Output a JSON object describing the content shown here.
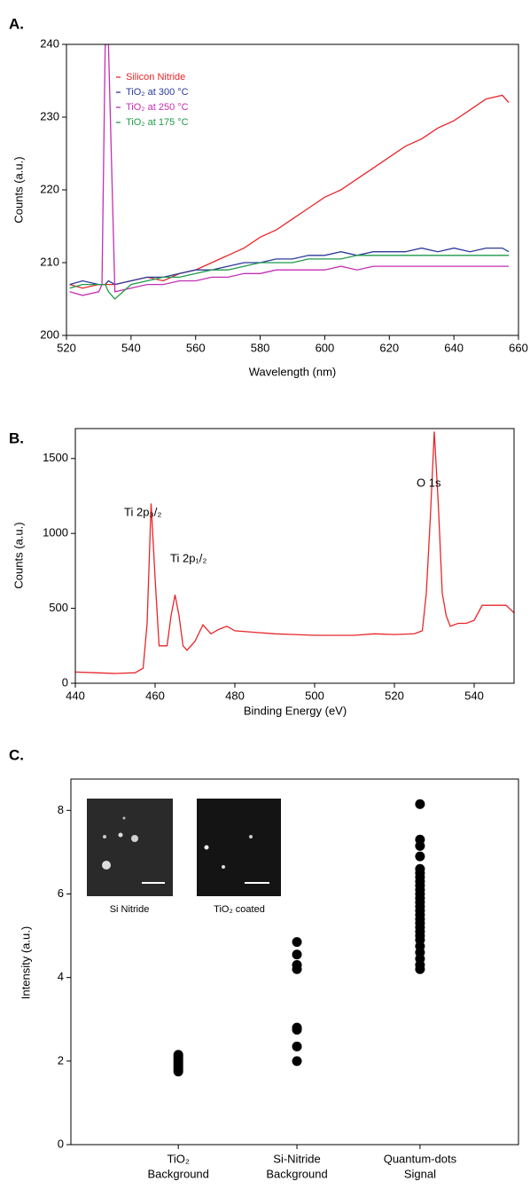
{
  "chart_data": [
    {
      "type": "line",
      "label": "A.",
      "xlabel": "Wavelength (nm)",
      "ylabel": "Counts (a.u.)",
      "xlim": [
        520,
        660
      ],
      "xticks": [
        520,
        540,
        560,
        580,
        600,
        620,
        640,
        660
      ],
      "ylim": [
        200,
        240
      ],
      "yticks": [
        200,
        210,
        220,
        230,
        240
      ],
      "legend": "upper left",
      "x": [
        521,
        525,
        530,
        531,
        532,
        533,
        535,
        540,
        545,
        550,
        555,
        560,
        565,
        570,
        575,
        580,
        585,
        590,
        595,
        600,
        605,
        610,
        615,
        620,
        625,
        630,
        635,
        640,
        645,
        650,
        655,
        657
      ],
      "series": [
        {
          "name": "Silicon Nitride",
          "color": "#e8262a",
          "values": [
            207,
            206.5,
            207,
            207,
            207,
            207,
            207,
            207.5,
            208,
            207.5,
            208.5,
            209,
            210,
            211,
            212,
            213.5,
            214.5,
            216,
            217.5,
            219,
            220,
            221.5,
            223,
            224.5,
            226,
            227,
            228.5,
            229.5,
            231,
            232.5,
            233,
            232
          ]
        },
        {
          "name": "TiO₂ at 300 °C",
          "color": "#2b3a9c",
          "values": [
            207,
            207.5,
            207,
            207,
            207,
            207.5,
            207,
            207.5,
            208,
            208,
            208.5,
            209,
            209,
            209.5,
            210,
            210,
            210.5,
            210.5,
            211,
            211,
            211.5,
            211,
            211.5,
            211.5,
            211.5,
            212,
            211.5,
            212,
            211.5,
            212,
            212,
            211.5
          ]
        },
        {
          "name": "TiO₂ at 250 °C",
          "color": "#c42fb4",
          "values": [
            206,
            205.5,
            206,
            207,
            240,
            240,
            206,
            206.5,
            207,
            207,
            207.5,
            207.5,
            208,
            208,
            208.5,
            208.5,
            209,
            209,
            209,
            209,
            209.5,
            209,
            209.5,
            209.5,
            209.5,
            209.5,
            209.5,
            209.5,
            209.5,
            209.5,
            209.5,
            209.5
          ]
        },
        {
          "name": "TiO₂ at 175 °C",
          "color": "#1f9a4a",
          "values": [
            206.5,
            207,
            207,
            207,
            207,
            206,
            205,
            207,
            207.5,
            208,
            208,
            208.5,
            209,
            209,
            209.5,
            210,
            210,
            210,
            210.5,
            210.5,
            210.5,
            211,
            211,
            211,
            211,
            211,
            211,
            211,
            211,
            211,
            211,
            211
          ]
        }
      ]
    },
    {
      "type": "line",
      "label": "B.",
      "xlabel": "Binding Energy (eV)",
      "ylabel": "Counts (a.u.)",
      "xlim": [
        440,
        550
      ],
      "xticks": [
        440,
        460,
        480,
        500,
        520,
        540
      ],
      "ylim": [
        0,
        1700
      ],
      "yticks": [
        0,
        500,
        1000,
        1500
      ],
      "x": [
        440,
        445,
        450,
        455,
        457,
        458,
        459,
        460,
        461,
        463,
        464,
        465,
        466,
        467,
        468,
        470,
        472,
        474,
        476,
        478,
        480,
        485,
        490,
        495,
        500,
        505,
        510,
        515,
        520,
        525,
        527,
        528,
        529,
        530,
        531,
        532,
        533,
        534,
        536,
        538,
        540,
        542,
        545,
        548,
        550
      ],
      "series": [
        {
          "name": null,
          "color": "#e8262a",
          "values": [
            75,
            70,
            65,
            70,
            100,
            400,
            1200,
            700,
            250,
            250,
            450,
            590,
            450,
            250,
            220,
            280,
            390,
            330,
            360,
            380,
            350,
            340,
            330,
            325,
            320,
            320,
            320,
            330,
            325,
            330,
            350,
            600,
            1100,
            1680,
            1200,
            600,
            450,
            380,
            400,
            400,
            420,
            520,
            520,
            520,
            470
          ]
        }
      ],
      "annotations": [
        "Ti 2p₃/₂",
        "Ti 2p₁/₂",
        "O 1s"
      ]
    },
    {
      "type": "strip",
      "label": "C.",
      "ylabel": "Intensity (a.u.)",
      "ylim": [
        0,
        8.75
      ],
      "yticks": [
        0,
        2,
        4,
        6,
        8
      ],
      "color": "#000000",
      "categories": [
        [
          "TiO₂",
          "Background"
        ],
        [
          "Si-Nitride",
          "Background"
        ],
        [
          "Quantum-dots",
          "Signal"
        ]
      ],
      "values": [
        [
          1.75,
          1.8,
          1.85,
          1.9,
          1.95,
          2.0,
          2.05,
          2.1,
          2.15
        ],
        [
          2.0,
          2.35,
          2.75,
          2.8,
          4.2,
          4.3,
          4.55,
          4.85
        ],
        [
          4.2,
          4.3,
          4.45,
          4.6,
          4.75,
          4.9,
          5.0,
          5.1,
          5.2,
          5.3,
          5.4,
          5.5,
          5.6,
          5.7,
          5.8,
          5.9,
          6.0,
          6.1,
          6.2,
          6.3,
          6.4,
          6.5,
          6.6,
          6.9,
          7.15,
          7.3,
          8.15
        ]
      ],
      "insets": [
        "Si Nitride",
        "TiO₂ coated"
      ]
    }
  ]
}
